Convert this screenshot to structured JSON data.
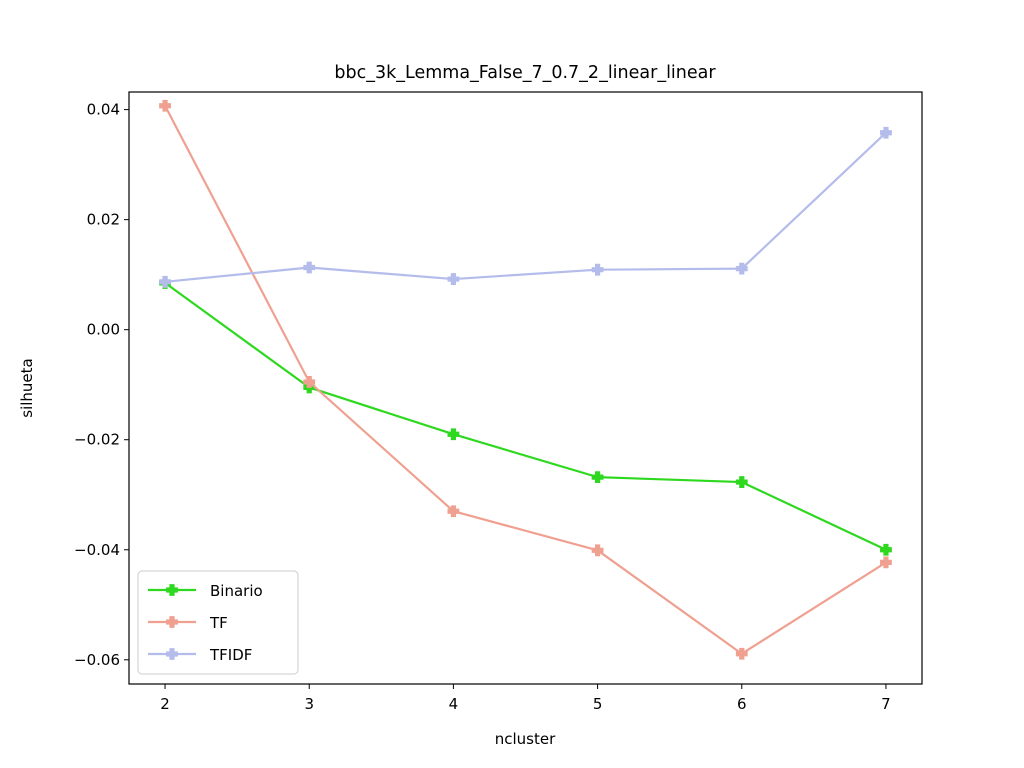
{
  "chart_data": {
    "type": "line",
    "title": "bbc_3k_Lemma_False_7_0.7_2_linear_linear",
    "xlabel": "ncluster",
    "ylabel": "silhueta",
    "x": [
      2,
      3,
      4,
      5,
      6,
      7
    ],
    "x_ticks": [
      "2",
      "3",
      "4",
      "5",
      "6",
      "7"
    ],
    "y_ticks": [
      "0.04",
      "0.02",
      "0.00",
      "−0.02",
      "−0.04",
      "−0.06"
    ],
    "y_tick_values": [
      0.04,
      0.02,
      0.0,
      -0.02,
      -0.04,
      -0.06
    ],
    "xlim": [
      1.75,
      7.25
    ],
    "ylim": [
      -0.0644,
      0.0432
    ],
    "grid": false,
    "legend_position": "lower-left",
    "series": [
      {
        "name": "Binario",
        "color": "#2ed81f",
        "values": [
          0.0085,
          -0.0105,
          -0.019,
          -0.0268,
          -0.0277,
          -0.04
        ]
      },
      {
        "name": "TF",
        "color": "#f0a090",
        "values": [
          0.0407,
          -0.0095,
          -0.033,
          -0.0401,
          -0.0589,
          -0.0423
        ]
      },
      {
        "name": "TFIDF",
        "color": "#b4bcec",
        "values": [
          0.0087,
          0.0113,
          0.0092,
          0.0109,
          0.0111,
          0.0358
        ]
      }
    ]
  }
}
